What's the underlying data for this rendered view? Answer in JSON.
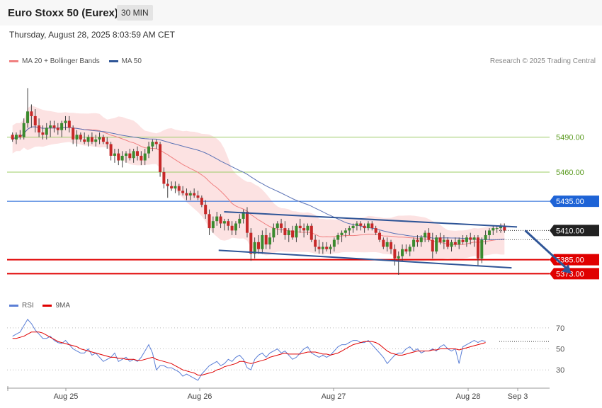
{
  "header": {
    "instrument": "Euro Stoxx 50 (Eurex)",
    "timeframe": "30 MIN"
  },
  "datetime": "Thursday, August 28, 2025 8:03:59 AM CET",
  "legend": [
    {
      "label": "MA 20 + Bollinger Bands",
      "color": "#f08080"
    },
    {
      "label": "MA 50",
      "color": "#2f5597"
    }
  ],
  "rsi_legend": [
    {
      "label": "RSI",
      "color": "#5b7fd6"
    },
    {
      "label": "9MA",
      "color": "#e00000"
    }
  ],
  "copyright": "Research © 2025 Trading Central",
  "chart_data": [
    {
      "type": "candlestick",
      "ylim": [
        5355,
        5548
      ],
      "x_labels": [
        "Aug 25",
        "Aug 26",
        "Aug 27",
        "Aug 28",
        "Sep 3"
      ],
      "current_price": {
        "value": 5410,
        "label": "5410.00",
        "color": "#222222"
      },
      "levels": [
        {
          "value": 5490,
          "label": "5490.00",
          "color": "#9ccc65",
          "text_color": "#5a9a1f",
          "style": "line"
        },
        {
          "value": 5460,
          "label": "5460.00",
          "color": "#9ccc65",
          "text_color": "#5a9a1f",
          "style": "line"
        },
        {
          "value": 5435,
          "label": "5435.00",
          "color": "#1e63d6",
          "text_color": "#ffffff",
          "style": "badge"
        },
        {
          "value": 5385,
          "label": "5385.00",
          "color": "#e00000",
          "text_color": "#ffffff",
          "style": "badge"
        },
        {
          "value": 5373,
          "label": "5373.00",
          "color": "#e00000",
          "text_color": "#ffffff",
          "style": "badge"
        }
      ],
      "channel": {
        "upper": {
          "from": [
            0.4,
            5426
          ],
          "to": [
            0.94,
            5413
          ]
        },
        "lower": {
          "from": [
            0.39,
            5393
          ],
          "to": [
            0.93,
            5378
          ]
        }
      },
      "projection_arrow": {
        "from": [
          0.955,
          5410
        ],
        "to": [
          1.04,
          5373
        ]
      },
      "candles": [
        [
          5492,
          5494,
          5486,
          5488
        ],
        [
          5488,
          5494,
          5484,
          5492
        ],
        [
          5492,
          5496,
          5488,
          5490
        ],
        [
          5490,
          5506,
          5488,
          5502
        ],
        [
          5502,
          5532,
          5498,
          5512
        ],
        [
          5512,
          5518,
          5498,
          5508
        ],
        [
          5508,
          5514,
          5494,
          5500
        ],
        [
          5500,
          5506,
          5490,
          5494
        ],
        [
          5494,
          5500,
          5488,
          5492
        ],
        [
          5492,
          5502,
          5488,
          5498
        ],
        [
          5498,
          5504,
          5490,
          5500
        ],
        [
          5500,
          5504,
          5494,
          5498
        ],
        [
          5498,
          5502,
          5492,
          5496
        ],
        [
          5496,
          5504,
          5490,
          5502
        ],
        [
          5502,
          5508,
          5496,
          5504
        ],
        [
          5504,
          5508,
          5494,
          5498
        ],
        [
          5498,
          5500,
          5484,
          5488
        ],
        [
          5488,
          5496,
          5482,
          5492
        ],
        [
          5492,
          5494,
          5486,
          5488
        ],
        [
          5488,
          5494,
          5484,
          5486
        ],
        [
          5486,
          5492,
          5482,
          5490
        ],
        [
          5490,
          5494,
          5484,
          5486
        ],
        [
          5486,
          5492,
          5482,
          5488
        ],
        [
          5488,
          5494,
          5484,
          5490
        ],
        [
          5490,
          5492,
          5484,
          5486
        ],
        [
          5486,
          5490,
          5480,
          5484
        ],
        [
          5484,
          5486,
          5470,
          5474
        ],
        [
          5474,
          5480,
          5468,
          5476
        ],
        [
          5476,
          5480,
          5466,
          5470
        ],
        [
          5470,
          5478,
          5464,
          5474
        ],
        [
          5474,
          5478,
          5468,
          5476
        ],
        [
          5476,
          5480,
          5470,
          5472
        ],
        [
          5472,
          5480,
          5468,
          5478
        ],
        [
          5478,
          5482,
          5470,
          5474
        ],
        [
          5474,
          5478,
          5466,
          5470
        ],
        [
          5470,
          5480,
          5466,
          5476
        ],
        [
          5476,
          5486,
          5472,
          5482
        ],
        [
          5482,
          5488,
          5478,
          5486
        ],
        [
          5486,
          5488,
          5480,
          5484
        ],
        [
          5484,
          5486,
          5456,
          5460
        ],
        [
          5460,
          5464,
          5446,
          5450
        ],
        [
          5450,
          5454,
          5438,
          5448
        ],
        [
          5448,
          5452,
          5444,
          5446
        ],
        [
          5446,
          5452,
          5442,
          5448
        ],
        [
          5448,
          5450,
          5440,
          5444
        ],
        [
          5444,
          5448,
          5440,
          5442
        ],
        [
          5442,
          5446,
          5436,
          5440
        ],
        [
          5440,
          5444,
          5436,
          5442
        ],
        [
          5442,
          5446,
          5438,
          5440
        ],
        [
          5440,
          5444,
          5436,
          5438
        ],
        [
          5438,
          5440,
          5430,
          5432
        ],
        [
          5432,
          5436,
          5420,
          5424
        ],
        [
          5424,
          5428,
          5406,
          5412
        ],
        [
          5412,
          5422,
          5408,
          5418
        ],
        [
          5418,
          5426,
          5414,
          5422
        ],
        [
          5422,
          5424,
          5412,
          5416
        ],
        [
          5416,
          5420,
          5410,
          5418
        ],
        [
          5418,
          5420,
          5410,
          5414
        ],
        [
          5414,
          5418,
          5406,
          5410
        ],
        [
          5410,
          5418,
          5406,
          5416
        ],
        [
          5416,
          5424,
          5412,
          5420
        ],
        [
          5420,
          5428,
          5416,
          5426
        ],
        [
          5426,
          5430,
          5404,
          5408
        ],
        [
          5408,
          5412,
          5384,
          5390
        ],
        [
          5390,
          5404,
          5386,
          5400
        ],
        [
          5400,
          5406,
          5390,
          5394
        ],
        [
          5394,
          5410,
          5390,
          5406
        ],
        [
          5406,
          5412,
          5394,
          5398
        ],
        [
          5398,
          5408,
          5394,
          5404
        ],
        [
          5404,
          5416,
          5400,
          5412
        ],
        [
          5412,
          5418,
          5406,
          5416
        ],
        [
          5416,
          5420,
          5408,
          5412
        ],
        [
          5412,
          5418,
          5402,
          5406
        ],
        [
          5406,
          5412,
          5400,
          5410
        ],
        [
          5410,
          5414,
          5402,
          5404
        ],
        [
          5404,
          5416,
          5400,
          5414
        ],
        [
          5414,
          5420,
          5408,
          5412
        ],
        [
          5412,
          5416,
          5404,
          5410
        ],
        [
          5410,
          5416,
          5406,
          5414
        ],
        [
          5414,
          5416,
          5400,
          5402
        ],
        [
          5402,
          5406,
          5392,
          5396
        ],
        [
          5396,
          5402,
          5390,
          5394
        ],
        [
          5394,
          5400,
          5390,
          5396
        ],
        [
          5396,
          5400,
          5392,
          5394
        ],
        [
          5394,
          5398,
          5390,
          5396
        ],
        [
          5396,
          5404,
          5392,
          5402
        ],
        [
          5402,
          5408,
          5398,
          5406
        ],
        [
          5406,
          5410,
          5400,
          5408
        ],
        [
          5408,
          5412,
          5404,
          5410
        ],
        [
          5410,
          5414,
          5406,
          5412
        ],
        [
          5412,
          5416,
          5408,
          5414
        ],
        [
          5414,
          5418,
          5410,
          5416
        ],
        [
          5416,
          5418,
          5410,
          5414
        ],
        [
          5414,
          5416,
          5408,
          5412
        ],
        [
          5412,
          5418,
          5410,
          5416
        ],
        [
          5416,
          5418,
          5410,
          5412
        ],
        [
          5412,
          5414,
          5406,
          5408
        ],
        [
          5408,
          5410,
          5400,
          5402
        ],
        [
          5402,
          5404,
          5394,
          5396
        ],
        [
          5396,
          5404,
          5392,
          5400
        ],
        [
          5400,
          5402,
          5390,
          5394
        ],
        [
          5394,
          5398,
          5380,
          5386
        ],
        [
          5386,
          5392,
          5372,
          5388
        ],
        [
          5388,
          5398,
          5384,
          5394
        ],
        [
          5394,
          5398,
          5390,
          5392
        ],
        [
          5392,
          5398,
          5388,
          5396
        ],
        [
          5396,
          5404,
          5392,
          5402
        ],
        [
          5402,
          5406,
          5396,
          5400
        ],
        [
          5400,
          5406,
          5396,
          5404
        ],
        [
          5404,
          5410,
          5400,
          5408
        ],
        [
          5408,
          5412,
          5400,
          5402
        ],
        [
          5402,
          5408,
          5386,
          5392
        ],
        [
          5392,
          5406,
          5390,
          5404
        ],
        [
          5404,
          5408,
          5398,
          5400
        ],
        [
          5400,
          5406,
          5394,
          5402
        ],
        [
          5402,
          5404,
          5394,
          5396
        ],
        [
          5396,
          5402,
          5392,
          5400
        ],
        [
          5400,
          5404,
          5396,
          5398
        ],
        [
          5398,
          5404,
          5394,
          5402
        ],
        [
          5402,
          5406,
          5398,
          5400
        ],
        [
          5400,
          5406,
          5396,
          5404
        ],
        [
          5404,
          5408,
          5398,
          5402
        ],
        [
          5402,
          5406,
          5396,
          5404
        ],
        [
          5404,
          5406,
          5380,
          5386
        ],
        [
          5386,
          5404,
          5382,
          5402
        ],
        [
          5402,
          5410,
          5398,
          5406
        ],
        [
          5406,
          5412,
          5402,
          5410
        ],
        [
          5410,
          5414,
          5406,
          5412
        ],
        [
          5412,
          5414,
          5408,
          5412
        ],
        [
          5412,
          5416,
          5408,
          5414
        ],
        [
          5414,
          5416,
          5408,
          5410
        ]
      ]
    },
    {
      "type": "line",
      "name": "RSI",
      "ylim": [
        18,
        82
      ],
      "y_ticks": [
        70,
        50,
        30
      ],
      "series": [
        {
          "name": "RSI",
          "color": "#5b7fd6",
          "values": [
            62,
            64,
            66,
            72,
            78,
            74,
            68,
            64,
            60,
            60,
            62,
            58,
            56,
            55,
            58,
            54,
            50,
            48,
            46,
            46,
            50,
            44,
            46,
            42,
            38,
            40,
            42,
            46,
            38,
            40,
            42,
            38,
            40,
            38,
            42,
            48,
            54,
            46,
            30,
            34,
            34,
            32,
            32,
            30,
            28,
            24,
            26,
            24,
            22,
            20,
            26,
            30,
            34,
            36,
            38,
            34,
            36,
            40,
            38,
            42,
            44,
            40,
            32,
            30,
            40,
            44,
            46,
            42,
            46,
            48,
            50,
            46,
            48,
            44,
            40,
            42,
            46,
            50,
            52,
            46,
            44,
            42,
            44,
            42,
            44,
            48,
            52,
            54,
            54,
            56,
            58,
            58,
            56,
            56,
            58,
            54,
            50,
            46,
            42,
            36,
            40,
            44,
            46,
            46,
            50,
            52,
            48,
            50,
            46,
            48,
            48,
            50,
            48,
            52,
            54,
            50,
            48,
            50,
            36,
            52,
            54,
            56,
            58,
            56,
            58,
            57
          ]
        },
        {
          "name": "9MA",
          "color": "#e00000",
          "values": [
            60,
            60,
            61,
            62,
            64,
            66,
            66,
            66,
            65,
            63,
            61,
            59,
            57,
            56,
            55,
            54,
            53,
            52,
            50,
            49,
            48,
            47,
            46,
            45,
            44,
            43,
            42,
            42,
            41,
            41,
            40,
            40,
            40,
            39,
            39,
            40,
            41,
            42,
            40,
            39,
            38,
            37,
            36,
            34,
            32,
            30,
            29,
            28,
            27,
            25,
            25,
            26,
            27,
            28,
            30,
            31,
            33,
            34,
            35,
            36,
            38,
            38,
            37,
            36,
            37,
            38,
            39,
            40,
            42,
            43,
            44,
            45,
            46,
            45,
            45,
            45,
            45,
            46,
            47,
            47,
            47,
            46,
            45,
            45,
            44,
            45,
            46,
            48,
            50,
            52,
            54,
            55,
            56,
            57,
            57,
            57,
            56,
            54,
            51,
            48,
            46,
            45,
            44,
            44,
            45,
            46,
            47,
            48,
            48,
            48,
            48,
            49,
            49,
            50,
            50,
            50,
            50,
            50,
            49,
            50,
            51,
            52,
            53,
            54,
            55,
            56
          ]
        }
      ]
    }
  ]
}
